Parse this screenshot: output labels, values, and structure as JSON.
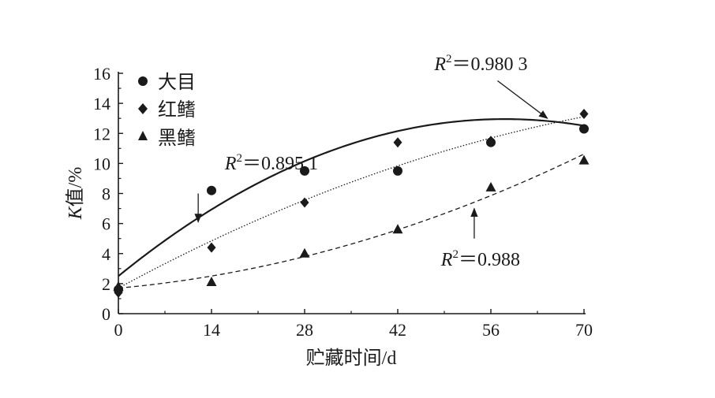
{
  "chart_data": {
    "type": "scatter",
    "title": "",
    "xlabel": "贮藏时间/d",
    "ylabel_main": "K",
    "ylabel_rest": "值/%",
    "xlim": [
      0,
      70
    ],
    "ylim": [
      0,
      16
    ],
    "xticks": [
      0,
      14,
      28,
      42,
      56,
      70
    ],
    "yticks": [
      0,
      2,
      4,
      6,
      8,
      10,
      12,
      14,
      16
    ],
    "legend_position": "top-left",
    "series": [
      {
        "name": "大目",
        "marker": "circle",
        "line_style": "solid",
        "x": [
          0,
          14,
          28,
          42,
          56,
          70
        ],
        "y": [
          1.6,
          8.2,
          9.5,
          9.5,
          11.4,
          12.3
        ],
        "fit_curve": [
          2.5,
          0.36,
          -0.0031
        ],
        "r2_label": "R",
        "r2_value": "＝0.895 1"
      },
      {
        "name": "红鳍",
        "marker": "diamond",
        "line_style": "dotted",
        "x": [
          0,
          14,
          28,
          42,
          56,
          70
        ],
        "y": [
          1.4,
          4.4,
          7.4,
          11.4,
          11.5,
          13.3
        ],
        "fit_curve": [
          1.7,
          0.24,
          -0.0011
        ],
        "r2_label": "R",
        "r2_value": "＝0.980 3"
      },
      {
        "name": "黑鳍",
        "marker": "triangle",
        "line_style": "dashed",
        "x": [
          0,
          14,
          28,
          42,
          56,
          70
        ],
        "y": [
          1.8,
          2.1,
          4.0,
          5.6,
          8.4,
          10.2
        ],
        "fit_curve": [
          1.7,
          0.04,
          0.00125
        ],
        "r2_label": "R",
        "r2_value": "＝0.988"
      }
    ],
    "annotations": [
      {
        "series": 0,
        "text_x": 16,
        "text_y": 9.6,
        "arrow_from": [
          12,
          8.0
        ],
        "arrow_to": [
          12,
          6.1
        ]
      },
      {
        "series": 1,
        "text_x": 47.5,
        "text_y": 16.2,
        "arrow_from": [
          57,
          15.5
        ],
        "arrow_to": [
          64.5,
          13.0
        ]
      },
      {
        "series": 2,
        "text_x": 48.5,
        "text_y": 3.2,
        "arrow_from": [
          53.5,
          5.0
        ],
        "arrow_to": [
          53.5,
          7.0
        ]
      }
    ]
  }
}
